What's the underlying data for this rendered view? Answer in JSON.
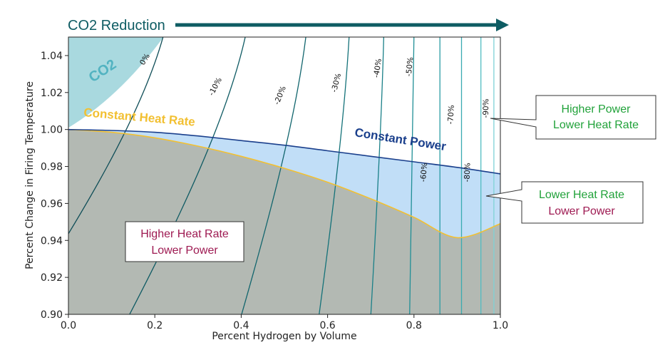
{
  "banner": {
    "label": "CO2 Reduction",
    "color": "#0e5c63"
  },
  "chart_data": {
    "type": "contour",
    "xlabel": "Percent Hydrogen by Volume",
    "ylabel": "Percent Change in Firing Temperature",
    "xlim": [
      0.0,
      1.0
    ],
    "ylim": [
      0.9,
      1.05
    ],
    "xticks": [
      "0.0",
      "0.2",
      "0.4",
      "0.6",
      "0.8",
      "1.0"
    ],
    "yticks": [
      "0.90",
      "0.92",
      "0.94",
      "0.96",
      "0.98",
      "1.00",
      "1.02",
      "1.04"
    ],
    "constant_heat_rate": {
      "label": "Constant Heat Rate",
      "color": "#f2c032",
      "x": [
        0.0,
        0.1,
        0.2,
        0.3,
        0.4,
        0.5,
        0.6,
        0.7,
        0.8,
        0.9,
        1.0
      ],
      "y": [
        1.0,
        0.9985,
        0.9955,
        0.991,
        0.9855,
        0.979,
        0.9715,
        0.9625,
        0.9525,
        0.9415,
        0.949
      ]
    },
    "constant_power": {
      "label": "Constant Power",
      "color": "#1a3f8c",
      "x": [
        0.0,
        0.1,
        0.2,
        0.3,
        0.4,
        0.5,
        0.6,
        0.7,
        0.8,
        0.9,
        1.0
      ],
      "y": [
        1.0,
        0.9995,
        0.9985,
        0.9965,
        0.994,
        0.9915,
        0.9885,
        0.9855,
        0.9825,
        0.9795,
        0.976
      ]
    },
    "co2_region": {
      "label": "CO2",
      "boundary_x_at_ymax": 0.22,
      "color": "#a9d9df"
    },
    "contours": [
      {
        "label": "0%",
        "x_top": 0.22,
        "x_bottom": -0.12,
        "color": "#0e4d57"
      },
      {
        "label": "-10%",
        "x_top": 0.41,
        "x_bottom": 0.14,
        "color": "#0e5a63"
      },
      {
        "label": "-20%",
        "x_top": 0.55,
        "x_bottom": 0.4,
        "color": "#11656d"
      },
      {
        "label": "-30%",
        "x_top": 0.65,
        "x_bottom": 0.58,
        "color": "#147279"
      },
      {
        "label": "-40%",
        "x_top": 0.73,
        "x_bottom": 0.7,
        "color": "#1a8088"
      },
      {
        "label": "-50%",
        "x_top": 0.8,
        "x_bottom": 0.79,
        "color": "#208f96"
      },
      {
        "label": "-60%",
        "x_top": 0.86,
        "x_bottom": 0.86,
        "color": "#2b9da4"
      },
      {
        "label": "-70%",
        "x_top": 0.91,
        "x_bottom": 0.91,
        "color": "#3aabb1"
      },
      {
        "label": "-80%",
        "x_top": 0.955,
        "x_bottom": 0.955,
        "color": "#52bdc2"
      },
      {
        "label": "-90%",
        "x_top": 0.985,
        "x_bottom": 0.985,
        "color": "#7fd2d6"
      }
    ],
    "region_colors": {
      "gray": "#b3b9b3",
      "lightblue": "#c1def7"
    }
  },
  "callouts": {
    "higher_power": {
      "line1": "Higher Power",
      "line2": "Lower Heat Rate",
      "color1": "#21a23a",
      "color2": "#21a23a"
    },
    "lower_heat_rate": {
      "line1": "Lower Heat Rate",
      "line2": "Lower Power",
      "color1": "#21a23a",
      "color2": "#9e1a52"
    },
    "higher_heat_rate": {
      "line1": "Higher Heat Rate",
      "line2": "Lower Power",
      "color1": "#9e1a52",
      "color2": "#9e1a52"
    }
  }
}
